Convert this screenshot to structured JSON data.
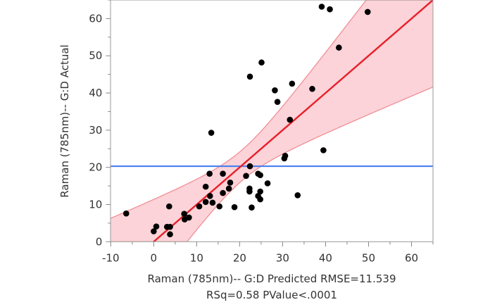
{
  "chart_data": {
    "type": "scatter",
    "title": "",
    "xlabel": "Raman (785nm)-- G:D Predicted RMSE=11.539",
    "xlabel_line2": "RSq=0.58 PValue<.0001",
    "ylabel": "Raman (785nm)-- G:D Actual",
    "xlim": [
      -10,
      65
    ],
    "ylim": [
      0,
      65
    ],
    "xticks": [
      -10,
      0,
      10,
      20,
      30,
      40,
      50,
      60
    ],
    "yticks": [
      0,
      10,
      20,
      30,
      40,
      50,
      60
    ],
    "grid": false,
    "fit_line": {
      "slope": 1.0,
      "intercept": 0.0,
      "color": "#e8202a"
    },
    "mean_line": {
      "y": 20.3,
      "color": "#4a7ff0"
    },
    "confidence_band": {
      "x_mean": 20.5,
      "a": 17,
      "b": 0.268,
      "color": "#fbd3d8"
    },
    "points": [
      [
        39.1,
        63.2
      ],
      [
        41.0,
        62.5
      ],
      [
        49.8,
        61.8
      ],
      [
        43.1,
        52.2
      ],
      [
        25.1,
        48.2
      ],
      [
        22.4,
        44.4
      ],
      [
        32.2,
        42.5
      ],
      [
        28.2,
        40.7
      ],
      [
        36.9,
        41.1
      ],
      [
        28.8,
        37.6
      ],
      [
        31.7,
        32.8
      ],
      [
        13.4,
        29.3
      ],
      [
        39.5,
        24.6
      ],
      [
        30.6,
        23.1
      ],
      [
        30.4,
        22.4
      ],
      [
        22.4,
        20.3
      ],
      [
        13.0,
        18.3
      ],
      [
        16.1,
        18.3
      ],
      [
        21.5,
        17.7
      ],
      [
        24.3,
        18.3
      ],
      [
        24.8,
        17.9
      ],
      [
        17.8,
        15.9
      ],
      [
        26.5,
        15.7
      ],
      [
        17.5,
        14.3
      ],
      [
        12.1,
        14.8
      ],
      [
        22.3,
        14.3
      ],
      [
        22.3,
        13.5
      ],
      [
        24.8,
        13.5
      ],
      [
        16.1,
        13.1
      ],
      [
        13.1,
        12.3
      ],
      [
        24.3,
        12.3
      ],
      [
        33.5,
        12.5
      ],
      [
        24.8,
        11.4
      ],
      [
        12.1,
        10.7
      ],
      [
        13.7,
        10.5
      ],
      [
        10.6,
        9.5
      ],
      [
        15.3,
        9.5
      ],
      [
        18.8,
        9.3
      ],
      [
        22.8,
        9.2
      ],
      [
        3.6,
        9.5
      ],
      [
        -6.4,
        7.6
      ],
      [
        7.1,
        7.5
      ],
      [
        7.2,
        6.0
      ],
      [
        8.2,
        6.5
      ],
      [
        0.6,
        4.1
      ],
      [
        0.0,
        2.8
      ],
      [
        3.1,
        4.0
      ],
      [
        3.8,
        4.0
      ],
      [
        3.8,
        2.0
      ]
    ]
  }
}
